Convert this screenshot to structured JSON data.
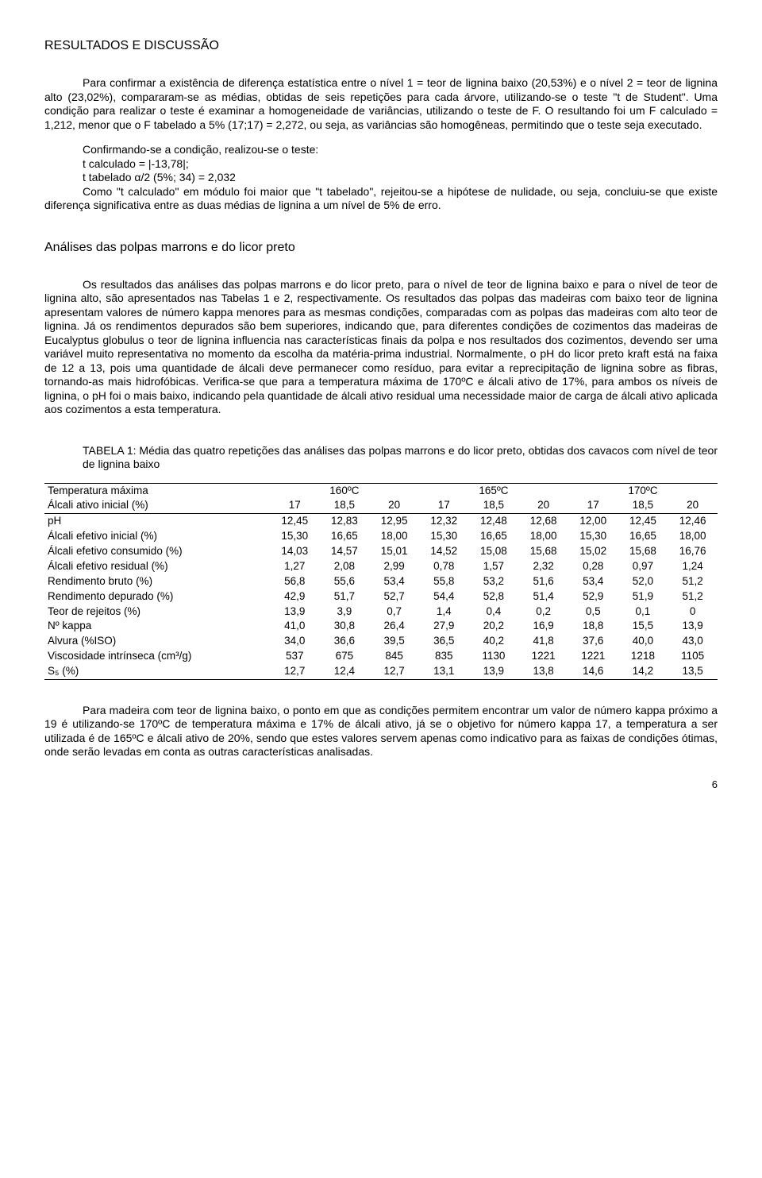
{
  "heading": "RESULTADOS E DISCUSSÃO",
  "intro_para1": "Para confirmar a existência de diferença estatística entre o nível 1 = teor de lignina baixo (20,53%) e o nível 2 = teor de lignina alto (23,02%), compararam-se as médias, obtidas de seis repetições para cada árvore, utilizando-se o teste \"t de Student\". Uma condição para realizar o teste é examinar a homogeneidade de variâncias, utilizando o teste de F. O resultando foi um F calculado = 1,212, menor que o F tabelado a 5% (17;17) = 2,272, ou seja, as variâncias são homogêneas, permitindo que o teste seja executado.",
  "intro_line_confirm": "Confirmando-se a condição, realizou-se o teste:",
  "intro_line_tcalc": "t calculado = |-13,78|;",
  "intro_line_ttab": "t tabelado α/2 (5%; 34) = 2,032",
  "intro_para2": "Como \"t calculado\" em módulo foi maior que \"t tabelado\", rejeitou-se a hipótese de nulidade, ou seja, concluiu-se que existe diferença significativa entre as duas médias de lignina a um nível de 5% de erro.",
  "section2_title": "Análises das polpas marrons e do licor preto",
  "section2_para": "Os resultados das análises das polpas marrons e do licor preto, para o nível de teor de lignina baixo e para o nível de teor de lignina alto, são apresentados nas Tabelas 1 e 2, respectivamente. Os resultados das polpas das madeiras com baixo teor de lignina apresentam valores de número kappa menores para as mesmas condições, comparadas com as polpas das madeiras com alto teor de lignina. Já os rendimentos depurados são bem superiores, indicando que, para diferentes condições de cozimentos das madeiras de Eucalyptus globulus o teor de lignina influencia nas características finais da polpa e nos resultados dos cozimentos, devendo ser uma variável muito representativa no momento da escolha da matéria-prima industrial. Normalmente, o pH do licor preto kraft está na faixa de 12 a 13, pois uma quantidade de álcali deve permanecer como resíduo, para evitar a reprecipitação de lignina sobre as fibras, tornando-as mais hidrofóbicas. Verifica-se que para a temperatura máxima de 170ºC e álcali ativo de 17%, para ambos os níveis de lignina, o pH foi o mais baixo, indicando pela quantidade de álcali ativo residual uma necessidade maior de carga de álcali ativo aplicada aos cozimentos a esta temperatura.",
  "table_caption": "TABELA 1: Média das quatro repetições das análises das polpas marrons e do licor preto, obtidas dos cavacos com nível de teor de lignina baixo",
  "table": {
    "row_temp_label": "Temperatura máxima",
    "temps": [
      "160ºC",
      "165ºC",
      "170ºC"
    ],
    "row_alcali_label": "Álcali ativo inicial (%)",
    "alcali_levels": [
      "17",
      "18,5",
      "20",
      "17",
      "18,5",
      "20",
      "17",
      "18,5",
      "20"
    ],
    "rows": [
      {
        "label": "pH",
        "vals": [
          "12,45",
          "12,83",
          "12,95",
          "12,32",
          "12,48",
          "12,68",
          "12,00",
          "12,45",
          "12,46"
        ]
      },
      {
        "label": "Álcali efetivo inicial (%)",
        "vals": [
          "15,30",
          "16,65",
          "18,00",
          "15,30",
          "16,65",
          "18,00",
          "15,30",
          "16,65",
          "18,00"
        ]
      },
      {
        "label": "Álcali efetivo consumido (%)",
        "vals": [
          "14,03",
          "14,57",
          "15,01",
          "14,52",
          "15,08",
          "15,68",
          "15,02",
          "15,68",
          "16,76"
        ]
      },
      {
        "label": "Álcali efetivo residual (%)",
        "vals": [
          "1,27",
          "2,08",
          "2,99",
          "0,78",
          "1,57",
          "2,32",
          "0,28",
          "0,97",
          "1,24"
        ]
      },
      {
        "label": "Rendimento bruto (%)",
        "vals": [
          "56,8",
          "55,6",
          "53,4",
          "55,8",
          "53,2",
          "51,6",
          "53,4",
          "52,0",
          "51,2"
        ]
      },
      {
        "label": "Rendimento depurado (%)",
        "vals": [
          "42,9",
          "51,7",
          "52,7",
          "54,4",
          "52,8",
          "51,4",
          "52,9",
          "51,9",
          "51,2"
        ]
      },
      {
        "label": "Teor de rejeitos (%)",
        "vals": [
          "13,9",
          "3,9",
          "0,7",
          "1,4",
          "0,4",
          "0,2",
          "0,5",
          "0,1",
          "0"
        ]
      },
      {
        "label": "Nº kappa",
        "vals": [
          "41,0",
          "30,8",
          "26,4",
          "27,9",
          "20,2",
          "16,9",
          "18,8",
          "15,5",
          "13,9"
        ]
      },
      {
        "label": "Alvura (%ISO)",
        "vals": [
          "34,0",
          "36,6",
          "39,5",
          "36,5",
          "40,2",
          "41,8",
          "37,6",
          "40,0",
          "43,0"
        ]
      },
      {
        "label": "Viscosidade intrínseca (cm³/g)",
        "vals": [
          "537",
          "675",
          "845",
          "835",
          "1130",
          "1221",
          "1221",
          "1218",
          "1105"
        ]
      },
      {
        "label": "S₅ (%)",
        "vals": [
          "12,7",
          "12,4",
          "12,7",
          "13,1",
          "13,9",
          "13,8",
          "14,6",
          "14,2",
          "13,5"
        ]
      }
    ]
  },
  "closing_para": "Para madeira com teor de lignina baixo, o ponto em que as condições permitem encontrar um valor de número kappa próximo a 19 é utilizando-se 170ºC de temperatura máxima e 17% de álcali ativo, já se o objetivo for número kappa 17, a temperatura a ser utilizada é de 165ºC e álcali ativo de 20%, sendo que estes valores servem apenas como indicativo para as faixas de condições ótimas, onde serão levadas em conta as outras características analisadas.",
  "page_number": "6"
}
